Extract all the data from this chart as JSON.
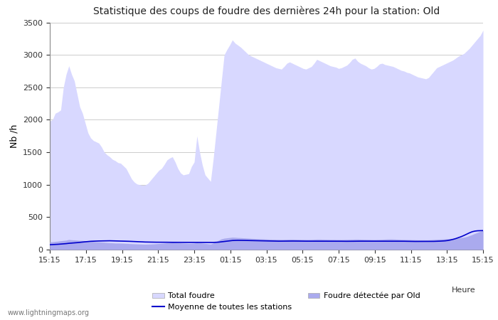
{
  "title": "Statistique des coups de foudre des dernières 24h pour la station: Old",
  "xlabel": "Heure",
  "ylabel": "Nb /h",
  "ylim": [
    0,
    3500
  ],
  "yticks": [
    0,
    500,
    1000,
    1500,
    2000,
    2500,
    3000,
    3500
  ],
  "xtick_labels": [
    "15:15",
    "17:15",
    "19:15",
    "21:15",
    "23:15",
    "01:15",
    "03:15",
    "05:15",
    "07:15",
    "09:15",
    "11:15",
    "13:15",
    "15:15"
  ],
  "watermark": "www.lightningmaps.org",
  "color_total": "#d8d8ff",
  "color_detected": "#aaaaee",
  "color_moyenne": "#0000cc",
  "background_color": "#ffffff",
  "total_foudre": [
    1980,
    2000,
    2100,
    2120,
    2150,
    2500,
    2700,
    2830,
    2700,
    2600,
    2400,
    2200,
    2100,
    1950,
    1800,
    1720,
    1680,
    1660,
    1640,
    1580,
    1500,
    1460,
    1430,
    1390,
    1370,
    1340,
    1330,
    1290,
    1250,
    1170,
    1090,
    1040,
    1010,
    1000,
    990,
    995,
    1020,
    1070,
    1120,
    1170,
    1220,
    1250,
    1310,
    1380,
    1410,
    1430,
    1350,
    1250,
    1180,
    1150,
    1160,
    1170,
    1280,
    1350,
    1750,
    1500,
    1300,
    1150,
    1100,
    1050,
    1400,
    1800,
    2200,
    2600,
    3000,
    3080,
    3150,
    3230,
    3180,
    3150,
    3120,
    3080,
    3040,
    3000,
    2980,
    2960,
    2940,
    2920,
    2900,
    2880,
    2860,
    2840,
    2820,
    2800,
    2790,
    2780,
    2820,
    2870,
    2890,
    2870,
    2850,
    2830,
    2810,
    2790,
    2780,
    2800,
    2820,
    2870,
    2930,
    2910,
    2890,
    2870,
    2850,
    2830,
    2820,
    2810,
    2790,
    2800,
    2820,
    2840,
    2880,
    2930,
    2950,
    2900,
    2870,
    2850,
    2830,
    2800,
    2780,
    2790,
    2820,
    2860,
    2870,
    2850,
    2840,
    2830,
    2820,
    2800,
    2780,
    2760,
    2750,
    2730,
    2720,
    2700,
    2680,
    2660,
    2650,
    2640,
    2630,
    2650,
    2700,
    2750,
    2800,
    2820,
    2840,
    2860,
    2880,
    2900,
    2920,
    2950,
    2980,
    3000,
    3020,
    3060,
    3100,
    3150,
    3200,
    3250,
    3300,
    3380
  ],
  "detected_foudre": [
    120,
    120,
    125,
    130,
    135,
    140,
    145,
    155,
    150,
    148,
    145,
    142,
    140,
    136,
    132,
    128,
    124,
    120,
    118,
    115,
    112,
    108,
    105,
    103,
    100,
    100,
    99,
    97,
    95,
    92,
    90,
    88,
    86,
    85,
    83,
    82,
    83,
    85,
    87,
    90,
    93,
    96,
    100,
    105,
    110,
    115,
    112,
    108,
    103,
    100,
    98,
    95,
    97,
    100,
    110,
    105,
    100,
    95,
    90,
    85,
    100,
    120,
    145,
    165,
    175,
    180,
    185,
    190,
    188,
    185,
    183,
    180,
    178,
    175,
    172,
    170,
    168,
    166,
    165,
    163,
    162,
    160,
    159,
    158,
    157,
    156,
    157,
    158,
    160,
    160,
    159,
    158,
    157,
    156,
    155,
    155,
    156,
    158,
    160,
    160,
    159,
    158,
    157,
    156,
    156,
    155,
    155,
    154,
    155,
    156,
    157,
    158,
    160,
    160,
    159,
    158,
    157,
    156,
    155,
    154,
    155,
    156,
    158,
    160,
    162,
    163,
    162,
    160,
    158,
    156,
    155,
    154,
    153,
    152,
    151,
    150,
    150,
    150,
    149,
    150,
    152,
    155,
    158,
    160,
    163,
    165,
    168,
    170,
    173,
    177,
    180,
    185,
    190,
    200,
    215,
    230,
    248,
    265,
    280,
    295
  ],
  "moyenne": [
    75,
    77,
    79,
    82,
    85,
    88,
    92,
    97,
    100,
    103,
    107,
    112,
    116,
    120,
    125,
    128,
    130,
    132,
    133,
    134,
    135,
    136,
    136,
    135,
    134,
    133,
    132,
    131,
    130,
    128,
    126,
    124,
    122,
    120,
    118,
    117,
    116,
    115,
    115,
    114,
    114,
    113,
    113,
    113,
    112,
    112,
    112,
    113,
    113,
    113,
    113,
    112,
    112,
    112,
    112,
    112,
    111,
    111,
    111,
    110,
    110,
    112,
    115,
    120,
    125,
    130,
    135,
    140,
    142,
    143,
    143,
    142,
    141,
    140,
    139,
    138,
    137,
    136,
    135,
    134,
    133,
    132,
    131,
    130,
    130,
    130,
    130,
    131,
    132,
    132,
    132,
    131,
    131,
    130,
    130,
    130,
    130,
    131,
    131,
    131,
    130,
    130,
    130,
    130,
    129,
    129,
    129,
    129,
    128,
    128,
    128,
    129,
    129,
    130,
    130,
    130,
    130,
    130,
    129,
    129,
    129,
    129,
    130,
    130,
    130,
    130,
    130,
    130,
    130,
    129,
    129,
    128,
    128,
    127,
    126,
    126,
    125,
    125,
    125,
    125,
    126,
    127,
    128,
    130,
    132,
    135,
    140,
    148,
    158,
    170,
    185,
    200,
    218,
    238,
    258,
    275,
    285,
    290,
    292,
    293
  ]
}
